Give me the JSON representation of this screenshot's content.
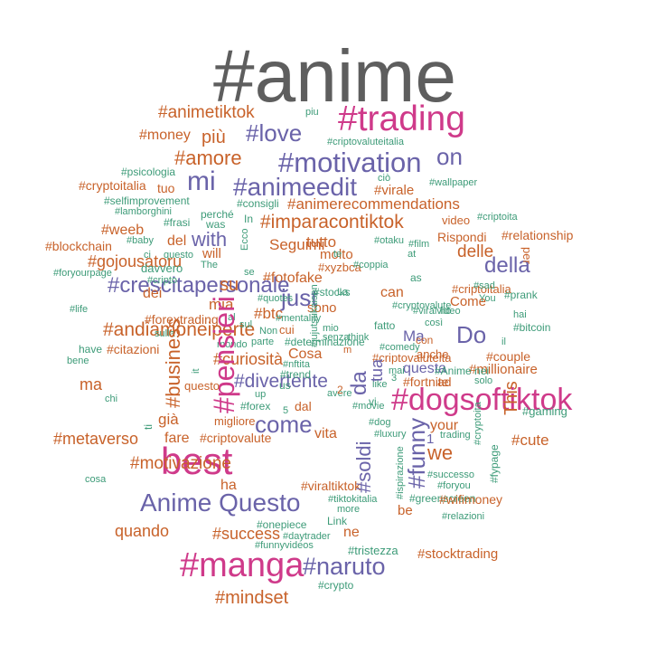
{
  "palette": {
    "gray": "#5e5e5e",
    "orange": "#c8622a",
    "pink": "#cf3a8a",
    "purple": "#6a63a9",
    "green": "#3d9b78"
  },
  "words": [
    {
      "id": "anime",
      "text": "#anime",
      "color": "gray"
    },
    {
      "id": "trading",
      "text": "#trading",
      "color": "pink"
    },
    {
      "id": "animetiktok",
      "text": "#animetiktok",
      "color": "orange"
    },
    {
      "id": "piu",
      "text": "piu",
      "color": "green"
    },
    {
      "id": "money",
      "text": "#money",
      "color": "orange"
    },
    {
      "id": "piu2",
      "text": "più",
      "color": "orange"
    },
    {
      "id": "love",
      "text": "#love",
      "color": "purple"
    },
    {
      "id": "criptovaluteitalia",
      "text": "#criptovaluteitalia",
      "color": "green"
    },
    {
      "id": "amore",
      "text": "#amore",
      "color": "orange"
    },
    {
      "id": "motivation",
      "text": "#motivation",
      "color": "purple"
    },
    {
      "id": "on",
      "text": "on",
      "color": "purple"
    },
    {
      "id": "psicologia",
      "text": "#psicologia",
      "color": "green"
    },
    {
      "id": "cryptoitalia",
      "text": "#cryptoitalia",
      "color": "orange"
    },
    {
      "id": "tuo",
      "text": "tuo",
      "color": "orange"
    },
    {
      "id": "mi",
      "text": "mi",
      "color": "purple"
    },
    {
      "id": "animeedit",
      "text": "#animeedit",
      "color": "purple"
    },
    {
      "id": "cio",
      "text": "ciò",
      "color": "green"
    },
    {
      "id": "virale",
      "text": "#virale",
      "color": "orange"
    },
    {
      "id": "wallpaper",
      "text": "#wallpaper",
      "color": "green"
    },
    {
      "id": "selfimprovement",
      "text": "#selfimprovement",
      "color": "green"
    },
    {
      "id": "consigli",
      "text": "#consigli",
      "color": "green"
    },
    {
      "id": "animerecommendations",
      "text": "#animerecommendations",
      "color": "orange"
    },
    {
      "id": "lamborghini",
      "text": "#lamborghini",
      "color": "green"
    },
    {
      "id": "perche",
      "text": "perché",
      "color": "green"
    },
    {
      "id": "criptoita",
      "text": "#criptoita",
      "color": "green"
    },
    {
      "id": "frasi",
      "text": "#frasi",
      "color": "green"
    },
    {
      "id": "was",
      "text": "was",
      "color": "green"
    },
    {
      "id": "in",
      "text": "In",
      "color": "green"
    },
    {
      "id": "imparacontiktok",
      "text": "#imparacontiktok",
      "color": "orange"
    },
    {
      "id": "video",
      "text": "video",
      "color": "orange"
    },
    {
      "id": "weeb",
      "text": "#weeb",
      "color": "orange"
    },
    {
      "id": "rispondi",
      "text": "Rispondi",
      "color": "orange"
    },
    {
      "id": "relationship",
      "text": "#relationship",
      "color": "orange"
    },
    {
      "id": "blockchain",
      "text": "#blockchain",
      "color": "orange"
    },
    {
      "id": "baby",
      "text": "#baby",
      "color": "green"
    },
    {
      "id": "del",
      "text": "del",
      "color": "orange"
    },
    {
      "id": "with",
      "text": "with",
      "color": "purple"
    },
    {
      "id": "seguimi",
      "text": "Seguimi",
      "color": "green"
    },
    {
      "id": "tutto",
      "text": "tutto",
      "color": "orange"
    },
    {
      "id": "otaku",
      "text": "#otaku",
      "color": "orange"
    },
    {
      "id": "film",
      "text": "#film",
      "color": "green"
    },
    {
      "id": "delle",
      "text": "delle",
      "color": "green"
    },
    {
      "id": "ci",
      "text": "ci",
      "color": "orange"
    },
    {
      "id": "questo",
      "text": "questo",
      "color": "orange"
    },
    {
      "id": "will",
      "text": "will",
      "color": "green"
    },
    {
      "id": "molto",
      "text": "molto",
      "color": "green"
    },
    {
      "id": "te",
      "text": "te",
      "color": "orange"
    },
    {
      "id": "at",
      "text": "at",
      "color": "orange"
    },
    {
      "id": "gojousatoru",
      "text": "#gojousatoru",
      "color": "green"
    },
    {
      "id": "davvero",
      "text": "davvero",
      "color": "green"
    },
    {
      "id": "the",
      "text": "The",
      "color": "orange"
    },
    {
      "id": "xyzbca",
      "text": "#xyzbca",
      "color": "green"
    },
    {
      "id": "coppia",
      "text": "#coppia",
      "color": "green"
    },
    {
      "id": "della",
      "text": "della",
      "color": "orange"
    },
    {
      "id": "foryourpage",
      "text": "#foryourpage",
      "color": "green"
    },
    {
      "id": "se",
      "text": "se",
      "color": "purple"
    },
    {
      "id": "fotofake",
      "text": "#fotofake",
      "color": "green"
    },
    {
      "id": "as",
      "text": "as",
      "color": "green"
    },
    {
      "id": "crescitapersonale",
      "text": "#crescitapersonale",
      "color": "orange"
    },
    {
      "id": "cripto",
      "text": "#cripto",
      "color": "green"
    },
    {
      "id": "su",
      "text": "su",
      "color": "purple"
    },
    {
      "id": "criptoitalia",
      "text": "#criptoitalia",
      "color": "green"
    },
    {
      "id": "sad",
      "text": "#sad",
      "color": "orange"
    },
    {
      "id": "dei",
      "text": "dei",
      "color": "orange"
    },
    {
      "id": "just",
      "text": "just",
      "color": "green"
    },
    {
      "id": "stocks",
      "text": "#stocks",
      "color": "orange"
    },
    {
      "id": "la",
      "text": "La",
      "color": "purple"
    },
    {
      "id": "can",
      "text": "can",
      "color": "green"
    },
    {
      "id": "prank",
      "text": "#prank",
      "color": "green"
    },
    {
      "id": "quotes",
      "text": "#quotes",
      "color": "orange"
    },
    {
      "id": "come2",
      "text": "Come",
      "color": "green"
    },
    {
      "id": "you",
      "text": "You",
      "color": "green"
    },
    {
      "id": "mia",
      "text": "mia",
      "color": "orange"
    },
    {
      "id": "life",
      "text": "#life",
      "color": "green"
    },
    {
      "id": "sono",
      "text": "sono",
      "color": "orange"
    },
    {
      "id": "cryptovalute",
      "text": "#cryptovalute",
      "color": "green"
    },
    {
      "id": "viralvideo",
      "text": "#viralvideo",
      "color": "orange"
    },
    {
      "id": "ho",
      "text": "ho",
      "color": "green"
    },
    {
      "id": "btc",
      "text": "#btc",
      "color": "green"
    },
    {
      "id": "forextrading",
      "text": "#forextrading",
      "color": "green"
    },
    {
      "id": "al",
      "text": "al",
      "color": "orange"
    },
    {
      "id": "mentality",
      "text": "#mentality",
      "color": "orange"
    },
    {
      "id": "hai",
      "text": "hai",
      "color": "green"
    },
    {
      "id": "andiamoneiperte",
      "text": "#andiamoneiperte",
      "color": "green"
    },
    {
      "id": "sul",
      "text": "sul",
      "color": "green"
    },
    {
      "id": "non",
      "text": "Non",
      "color": "orange"
    },
    {
      "id": "cui",
      "text": "cui",
      "color": "green"
    },
    {
      "id": "mio",
      "text": "mio",
      "color": "green"
    },
    {
      "id": "fatto",
      "text": "fatto",
      "color": "orange"
    },
    {
      "id": "cosi",
      "text": "così",
      "color": "green"
    },
    {
      "id": "bitcoin",
      "text": "#bitcoin",
      "color": "green"
    },
    {
      "id": "sulla",
      "text": "sulla",
      "color": "green"
    },
    {
      "id": "parte",
      "text": "parte",
      "color": "green"
    },
    {
      "id": "determinazione",
      "text": "#determinazione",
      "color": "green"
    },
    {
      "id": "senza",
      "text": "senza",
      "color": "green"
    },
    {
      "id": "do",
      "text": "Do",
      "color": "green"
    },
    {
      "id": "ma2",
      "text": "Ma",
      "color": "green"
    },
    {
      "id": "con",
      "text": "con",
      "color": "purple"
    },
    {
      "id": "il",
      "text": "il",
      "color": "purple"
    },
    {
      "id": "mondo",
      "text": "mondo",
      "color": "orange"
    },
    {
      "id": "think",
      "text": "think",
      "color": "green"
    },
    {
      "id": "have",
      "text": "have",
      "color": "green"
    },
    {
      "id": "citazioni",
      "text": "#citazioni",
      "color": "green"
    },
    {
      "id": "cosa2",
      "text": "Cosa",
      "color": "green"
    },
    {
      "id": "comedy",
      "text": "#comedy",
      "color": "orange"
    },
    {
      "id": "anche",
      "text": "anche",
      "color": "orange"
    },
    {
      "id": "bene",
      "text": "bene",
      "color": "green"
    },
    {
      "id": "curiosita",
      "text": "#curiosità",
      "color": "orange"
    },
    {
      "id": "criptovaluteita",
      "text": "#criptovaluteita",
      "color": "green"
    },
    {
      "id": "couple",
      "text": "#couple",
      "color": "orange"
    },
    {
      "id": "nftita",
      "text": "#nftita",
      "color": "orange"
    },
    {
      "id": "questa",
      "text": "questa",
      "color": "orange"
    },
    {
      "id": "millionaire",
      "text": "#millionaire",
      "color": "green"
    },
    {
      "id": "ma",
      "text": "ma",
      "color": "purple"
    },
    {
      "id": "divertente",
      "text": "#divertente",
      "color": "orange"
    },
    {
      "id": "trend",
      "text": "#trend",
      "color": "orange"
    },
    {
      "id": "mai",
      "text": "mai",
      "color": "purple"
    },
    {
      "id": "animenei",
      "text": "#Anime nei",
      "color": "green"
    },
    {
      "id": "us",
      "text": "us",
      "color": "green"
    },
    {
      "id": "like",
      "text": "like",
      "color": "green"
    },
    {
      "id": "fortnite",
      "text": "#fortnite",
      "color": "green"
    },
    {
      "id": "ad",
      "text": "ad",
      "color": "green"
    },
    {
      "id": "solo",
      "text": "solo",
      "color": "orange"
    },
    {
      "id": "chi",
      "text": "chi",
      "color": "orange"
    },
    {
      "id": "up",
      "text": "up",
      "color": "green"
    },
    {
      "id": "avere",
      "text": "avere",
      "color": "green"
    },
    {
      "id": "dogsoftiktok",
      "text": "#dogsoftiktok",
      "color": "green"
    },
    {
      "id": "vi",
      "text": "vi",
      "color": "green"
    },
    {
      "id": "forex",
      "text": "#forex",
      "color": "pink"
    },
    {
      "id": "dal",
      "text": "dal",
      "color": "green"
    },
    {
      "id": "movie",
      "text": "#movie",
      "color": "green"
    },
    {
      "id": "gaming",
      "text": "#gaming",
      "color": "orange"
    },
    {
      "id": "gia",
      "text": "già",
      "color": "green"
    },
    {
      "id": "migliore",
      "text": "migliore",
      "color": "green"
    },
    {
      "id": "come",
      "text": "come",
      "color": "orange"
    },
    {
      "id": "dog",
      "text": "#dog",
      "color": "orange"
    },
    {
      "id": "your",
      "text": "your",
      "color": "purple"
    },
    {
      "id": "metaverso",
      "text": "#metaverso",
      "color": "green"
    },
    {
      "id": "fare",
      "text": "fare",
      "color": "orange"
    },
    {
      "id": "criptovalute",
      "text": "#criptovalute",
      "color": "orange"
    },
    {
      "id": "vita",
      "text": "vita",
      "color": "orange"
    },
    {
      "id": "luxury",
      "text": "#luxury",
      "color": "orange"
    },
    {
      "id": "trading2",
      "text": "trading",
      "color": "orange"
    },
    {
      "id": "cute",
      "text": "#cute",
      "color": "green"
    },
    {
      "id": "best",
      "text": "best",
      "color": "green"
    },
    {
      "id": "we",
      "text": "we",
      "color": "orange"
    },
    {
      "id": "motivazione",
      "text": "#motivazione",
      "color": "pink"
    },
    {
      "id": "cosa",
      "text": "cosa",
      "color": "orange"
    },
    {
      "id": "ha",
      "text": "ha",
      "color": "orange"
    },
    {
      "id": "viraltiktok",
      "text": "#viraltiktok",
      "color": "green"
    },
    {
      "id": "successo",
      "text": "#successo",
      "color": "orange"
    },
    {
      "id": "foryou",
      "text": "#foryou",
      "color": "orange"
    },
    {
      "id": "animequesto",
      "text": "Anime Questo",
      "color": "green"
    },
    {
      "id": "tiktokitalia",
      "text": "#tiktokitalia",
      "color": "green"
    },
    {
      "id": "greenscreen",
      "text": "#greenscreen",
      "color": "purple"
    },
    {
      "id": "wifimoney",
      "text": "#wifimoney",
      "color": "green"
    },
    {
      "id": "more",
      "text": "more",
      "color": "green"
    },
    {
      "id": "be",
      "text": "be",
      "color": "orange"
    },
    {
      "id": "relazioni",
      "text": "#relazioni",
      "color": "green"
    },
    {
      "id": "link",
      "text": "Link",
      "color": "orange"
    },
    {
      "id": "quando",
      "text": "quando",
      "color": "green"
    },
    {
      "id": "success",
      "text": "#success",
      "color": "green"
    },
    {
      "id": "onepiece",
      "text": "#onepiece",
      "color": "orange"
    },
    {
      "id": "ne",
      "text": "ne",
      "color": "orange"
    },
    {
      "id": "daytrader",
      "text": "#daytrader",
      "color": "green"
    },
    {
      "id": "funnyvideos",
      "text": "#funnyvideos",
      "color": "orange"
    },
    {
      "id": "tristezza",
      "text": "#tristezza",
      "color": "green"
    },
    {
      "id": "stocktrading",
      "text": "#stocktrading",
      "color": "green"
    },
    {
      "id": "manga",
      "text": "#manga",
      "color": "green"
    },
    {
      "id": "naruto",
      "text": "#naruto",
      "color": "orange"
    },
    {
      "id": "crypto",
      "text": "#crypto",
      "color": "pink"
    },
    {
      "id": "mindset",
      "text": "#mindset",
      "color": "purple"
    },
    {
      "id": "pensieri",
      "text": "#pensieri",
      "color": "green"
    },
    {
      "id": "business",
      "text": "#business",
      "color": "orange"
    },
    {
      "id": "da",
      "text": "da",
      "color": "pink"
    },
    {
      "id": "funny",
      "text": "#funny",
      "color": "orange"
    },
    {
      "id": "this",
      "text": "This",
      "color": "purple"
    },
    {
      "id": "soldi",
      "text": "#soldi",
      "color": "purple"
    },
    {
      "id": "tua",
      "text": "tua",
      "color": "orange"
    },
    {
      "id": "ti",
      "text": "ti",
      "color": "purple"
    },
    {
      "id": "it",
      "text": "it",
      "color": "purple"
    },
    {
      "id": "ispirazione",
      "text": "#ispirazione",
      "color": "green"
    },
    {
      "id": "fypage",
      "text": "#fypage",
      "color": "green"
    },
    {
      "id": "cryptoita",
      "text": "#cryptoita",
      "color": "green"
    },
    {
      "id": "jujutsukaisen",
      "text": "#jujutsukaisen",
      "color": "green"
    },
    {
      "id": "ecco",
      "text": "Ecco",
      "color": "green"
    },
    {
      "id": "per",
      "text": "per",
      "color": "green"
    },
    {
      "id": "questo2",
      "text": "questo",
      "color": "orange"
    },
    {
      "id": "m",
      "text": "m",
      "color": "orange"
    },
    {
      "id": "num2",
      "text": "2",
      "color": "orange"
    },
    {
      "id": "num3",
      "text": "3",
      "color": "orange"
    },
    {
      "id": "num5",
      "text": "5",
      "color": "green"
    },
    {
      "id": "num1",
      "text": "1",
      "color": "green"
    },
    {
      "id": "e",
      "text": "E",
      "color": "purple"
    }
  ]
}
